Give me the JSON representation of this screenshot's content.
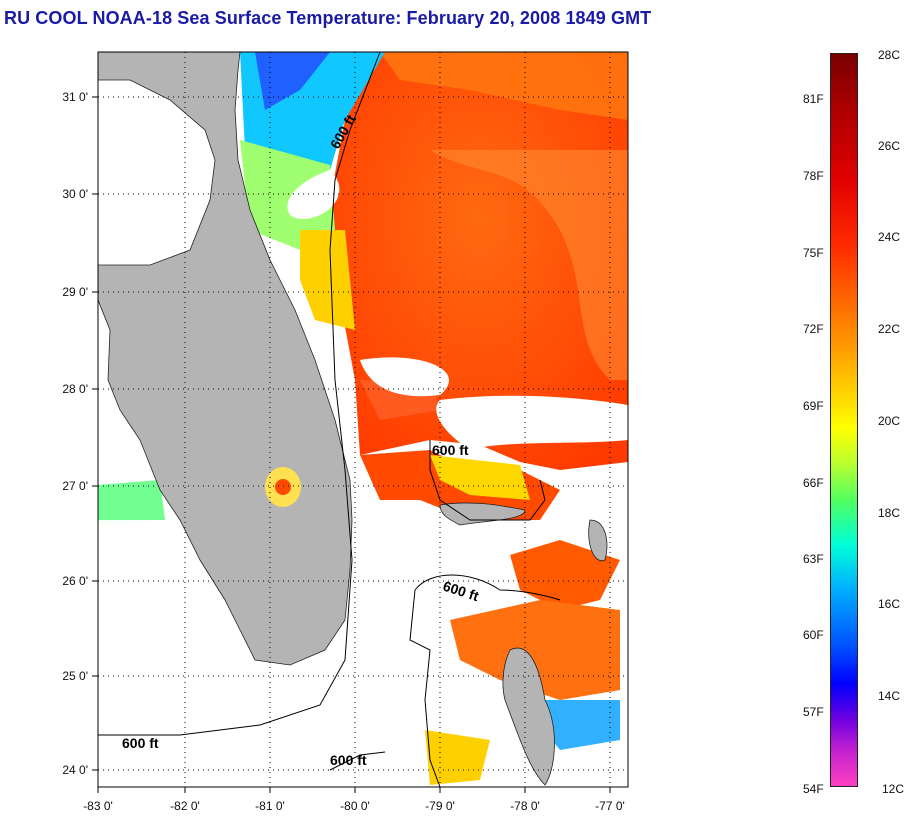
{
  "title": "RU COOL  NOAA-18  Sea Surface Temperature:  February 20, 2008 1849 GMT",
  "map": {
    "lon_ticks": [
      "-83 0'",
      "-82 0'",
      "-81 0'",
      "-80 0'",
      "-79 0'",
      "-78 0'",
      "-77 0'"
    ],
    "lat_ticks": [
      "31 0'",
      "30 0'",
      "29 0'",
      "28 0'",
      "27 0'",
      "26 0'",
      "25 0'",
      "24 0'"
    ],
    "isobath_labels": [
      "600 ft",
      "600 ft",
      "600 ft",
      "600 ft",
      "600 ft"
    ],
    "colors": {
      "land": "#b4b4b4",
      "gulf_stream": "#ff5a00",
      "shelf_cool": "#00d0ff",
      "cloud": "#ffffff"
    }
  },
  "colorbar": {
    "celsius": [
      "28C",
      "26C",
      "24C",
      "22C",
      "20C",
      "18C",
      "16C",
      "14C",
      "12C"
    ],
    "fahrenheit": [
      "81F",
      "78F",
      "75F",
      "72F",
      "69F",
      "66F",
      "63F",
      "60F",
      "57F",
      "54F"
    ]
  }
}
